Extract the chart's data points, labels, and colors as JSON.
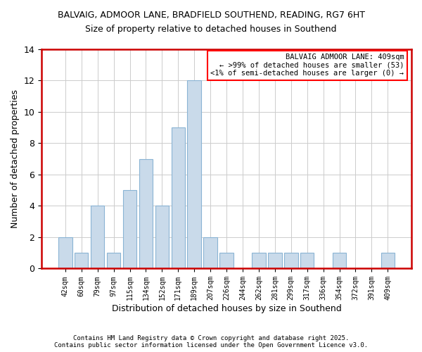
{
  "title1": "BALVAIG, ADMOOR LANE, BRADFIELD SOUTHEND, READING, RG7 6HT",
  "title2": "Size of property relative to detached houses in Southend",
  "xlabel": "Distribution of detached houses by size in Southend",
  "ylabel": "Number of detached properties",
  "bar_labels": [
    "42sqm",
    "60sqm",
    "79sqm",
    "97sqm",
    "115sqm",
    "134sqm",
    "152sqm",
    "171sqm",
    "189sqm",
    "207sqm",
    "226sqm",
    "244sqm",
    "262sqm",
    "281sqm",
    "299sqm",
    "317sqm",
    "336sqm",
    "354sqm",
    "372sqm",
    "391sqm",
    "409sqm"
  ],
  "bar_values": [
    2,
    1,
    4,
    1,
    5,
    7,
    4,
    9,
    12,
    2,
    1,
    0,
    1,
    1,
    1,
    1,
    0,
    1,
    0,
    0,
    1
  ],
  "bar_color": "#c9daea",
  "bar_edge_color": "#8ab4d4",
  "annotation_box_text": "BALVAIG ADMOOR LANE: 409sqm\n← >99% of detached houses are smaller (53)\n<1% of semi-detached houses are larger (0) →",
  "annotation_box_edge_color": "red",
  "grid_color": "#cccccc",
  "ylim": [
    0,
    14
  ],
  "yticks": [
    0,
    2,
    4,
    6,
    8,
    10,
    12,
    14
  ],
  "footer1": "Contains HM Land Registry data © Crown copyright and database right 2025.",
  "footer2": "Contains public sector information licensed under the Open Government Licence v3.0.",
  "bg_color": "white",
  "plot_bg_color": "white",
  "red_border_color": "#cc0000",
  "title1_fontsize": 9,
  "title2_fontsize": 9
}
